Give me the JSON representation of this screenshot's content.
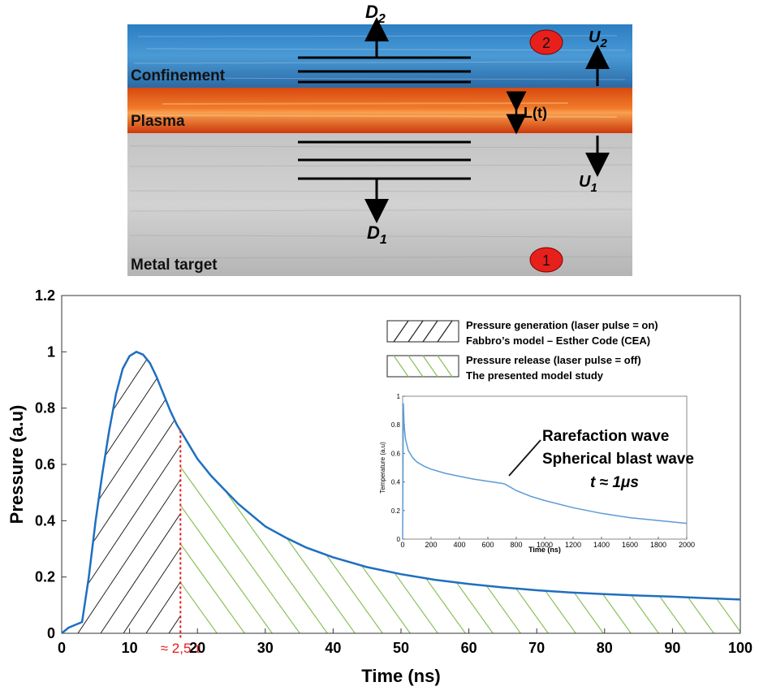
{
  "diagram": {
    "layers": {
      "confinement": "Confinement",
      "plasma": "Plasma",
      "metal": "Metal target"
    },
    "markers": {
      "region2": "2",
      "region1": "1"
    },
    "arrows": {
      "d2_main": "D",
      "d2_sub": "2",
      "d1_main": "D",
      "d1_sub": "1",
      "u2_main": "U",
      "u2_sub": "2",
      "u1_main": "U",
      "u1_sub": "1",
      "thickness": "L(t)"
    },
    "colors": {
      "confinement": "#2e6fa8",
      "plasma": "#e05a1a",
      "metal": "#a8a8a8",
      "marker": "#e8201c"
    }
  },
  "chart_data": {
    "type": "line",
    "xlabel": "Time (ns)",
    "ylabel": "Pressure (a.u)",
    "xlim": [
      0,
      100
    ],
    "ylim": [
      0,
      1.2
    ],
    "x_ticks": [
      0,
      10,
      20,
      30,
      40,
      50,
      60,
      70,
      80,
      90,
      100
    ],
    "y_ticks": [
      0,
      0.2,
      0.4,
      0.6,
      0.8,
      1,
      1.2
    ],
    "y_tick_labels": [
      "0",
      "0.2",
      "0.4",
      "0.6",
      "0.8",
      "1",
      "1.2"
    ],
    "series": [
      {
        "color": "#1f6fc0",
        "x": [
          0,
          1,
          2,
          3,
          4,
          5,
          6,
          7,
          8,
          9,
          10,
          11,
          12,
          13,
          14,
          15,
          16,
          17,
          18,
          19,
          20,
          22,
          24,
          26,
          28,
          30,
          33,
          36,
          40,
          45,
          50,
          55,
          60,
          65,
          70,
          75,
          80,
          85,
          90,
          95,
          100
        ],
        "y": [
          0,
          0.02,
          0.03,
          0.04,
          0.2,
          0.4,
          0.57,
          0.72,
          0.85,
          0.94,
          0.985,
          1.0,
          0.99,
          0.96,
          0.91,
          0.85,
          0.79,
          0.74,
          0.7,
          0.66,
          0.62,
          0.56,
          0.51,
          0.46,
          0.42,
          0.38,
          0.34,
          0.305,
          0.27,
          0.235,
          0.21,
          0.19,
          0.175,
          0.163,
          0.153,
          0.145,
          0.139,
          0.134,
          0.13,
          0.125,
          0.12
        ]
      }
    ],
    "marker_line": {
      "x": 17.5,
      "label": "≈ 2,5 τ"
    },
    "legend": {
      "position": "top-right",
      "entries": [
        {
          "hatch_color": "#222222",
          "line1": "Pressure generation (laser pulse = on)",
          "line2": "Fabbro’s model – Esther Code (CEA)"
        },
        {
          "hatch_color": "#8cbf5a",
          "line1": "Pressure release (laser pulse = off)",
          "line2": "The presented model study"
        }
      ]
    },
    "inset": {
      "type": "line",
      "xlabel": "Time (ns)",
      "ylabel": "Temperature (a.u)",
      "xlim": [
        0,
        2000
      ],
      "ylim": [
        0,
        1
      ],
      "x_ticks": [
        0,
        200,
        400,
        600,
        800,
        1000,
        1200,
        1400,
        1600,
        1800,
        2000
      ],
      "y_ticks": [
        0,
        0.2,
        0.4,
        0.6,
        0.8,
        1
      ],
      "y_tick_labels": [
        "0",
        "0.2",
        "0.4",
        "0.6",
        "0.8",
        "1"
      ],
      "x": [
        0,
        5,
        10,
        20,
        40,
        70,
        100,
        150,
        200,
        300,
        400,
        500,
        600,
        700,
        720,
        800,
        900,
        1000,
        1200,
        1400,
        1600,
        1800,
        2000
      ],
      "y": [
        0,
        0.95,
        0.8,
        0.7,
        0.62,
        0.57,
        0.54,
        0.51,
        0.49,
        0.46,
        0.44,
        0.42,
        0.405,
        0.39,
        0.385,
        0.34,
        0.3,
        0.27,
        0.22,
        0.18,
        0.15,
        0.13,
        0.11
      ],
      "annotation": {
        "line1": "Rarefaction wave",
        "line2": "Spherical blast wave",
        "line3": "t ≈ 1μs"
      }
    }
  }
}
